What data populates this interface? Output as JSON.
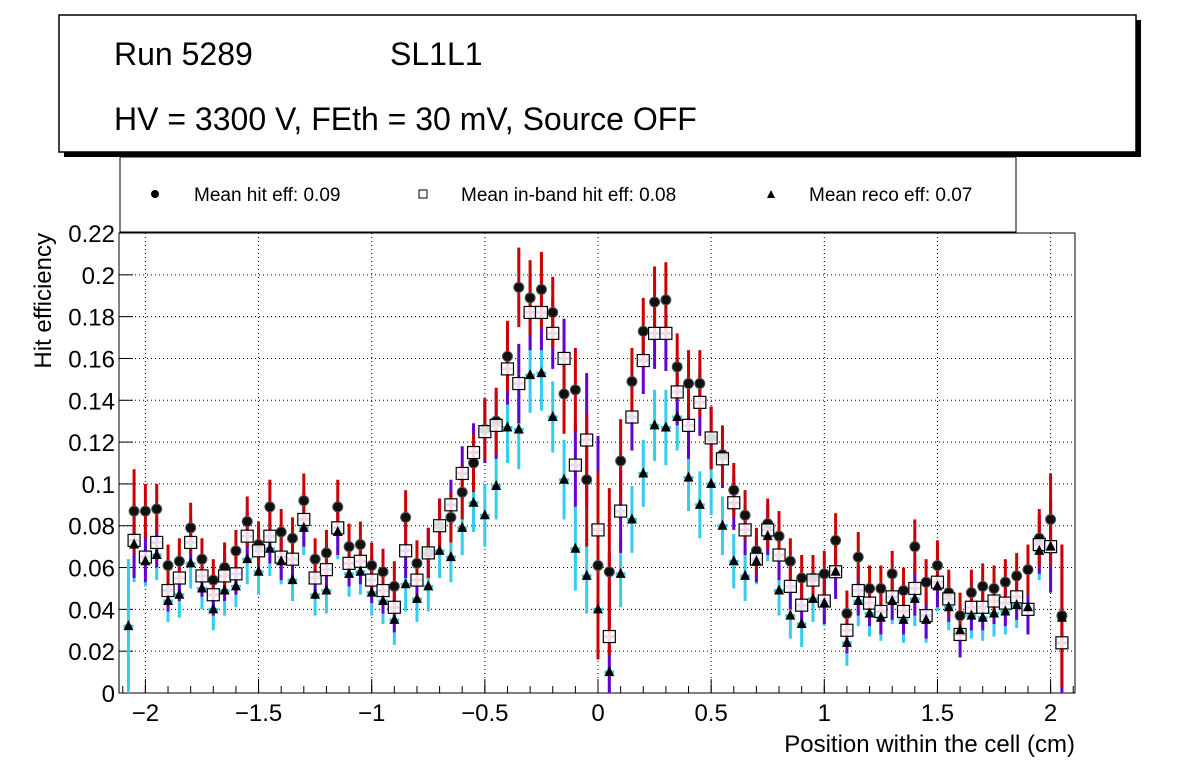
{
  "chart_data": {
    "type": "scatter",
    "title_box": {
      "line1_left": "Run 5289",
      "line1_right": "SL1L1",
      "line2": "HV = 3300 V, FEth = 30 mV, Source OFF"
    },
    "legend": [
      {
        "name": "Mean hit  eff: 0.09",
        "marker": "circle"
      },
      {
        "name": "Mean in-band hit eff: 0.08",
        "marker": "open-square"
      },
      {
        "name": "Mean reco eff: 0.07",
        "marker": "triangle"
      }
    ],
    "legend_position": "top",
    "xlabel": "Position within the cell (cm)",
    "ylabel": "Hit efficiency",
    "xlim": [
      -2.1,
      2.1
    ],
    "ylim": [
      0,
      0.22
    ],
    "xticks": [
      -2,
      -1.5,
      -1,
      -0.5,
      0,
      0.5,
      1,
      1.5,
      2
    ],
    "xtick_labels": [
      "−2",
      "−1.5",
      "−1",
      "−0.5",
      "0",
      "0.5",
      "1",
      "1.5",
      "2"
    ],
    "yticks": [
      0,
      0.02,
      0.04,
      0.06,
      0.08,
      0.1,
      0.12,
      0.14,
      0.16,
      0.18,
      0.2,
      0.22
    ],
    "ytick_labels": [
      "0",
      "0.02",
      "0.04",
      "0.06",
      "0.08",
      "0.1",
      "0.12",
      "0.14",
      "0.16",
      "0.18",
      "0.2",
      "0.22"
    ],
    "grid": true,
    "colors": {
      "hit_err": "#cc0000",
      "inband_err": "#6600cc",
      "reco_err": "#33ccee"
    },
    "x": [
      -2.075,
      -2.05,
      -2.0,
      -1.95,
      -1.9,
      -1.85,
      -1.8,
      -1.75,
      -1.7,
      -1.65,
      -1.6,
      -1.55,
      -1.5,
      -1.45,
      -1.4,
      -1.35,
      -1.3,
      -1.25,
      -1.2,
      -1.15,
      -1.1,
      -1.05,
      -1.0,
      -0.95,
      -0.9,
      -0.85,
      -0.8,
      -0.75,
      -0.7,
      -0.65,
      -0.6,
      -0.55,
      -0.5,
      -0.45,
      -0.4,
      -0.35,
      -0.3,
      -0.25,
      -0.2,
      -0.15,
      -0.1,
      -0.05,
      0.0,
      0.05,
      0.1,
      0.15,
      0.2,
      0.25,
      0.3,
      0.35,
      0.4,
      0.45,
      0.5,
      0.55,
      0.6,
      0.65,
      0.7,
      0.75,
      0.8,
      0.85,
      0.9,
      0.95,
      1.0,
      1.05,
      1.1,
      1.15,
      1.2,
      1.25,
      1.3,
      1.35,
      1.4,
      1.45,
      1.5,
      1.55,
      1.6,
      1.65,
      1.7,
      1.75,
      1.8,
      1.85,
      1.9,
      1.95,
      2.0,
      2.05
    ],
    "series": [
      {
        "name": "hit",
        "values": [
          null,
          0.087,
          0.087,
          0.088,
          0.061,
          0.063,
          0.079,
          0.064,
          0.054,
          0.06,
          0.068,
          0.082,
          0.071,
          0.089,
          0.077,
          0.074,
          0.092,
          0.064,
          0.067,
          0.089,
          0.07,
          0.071,
          0.061,
          0.058,
          0.051,
          0.084,
          0.062,
          0.067,
          0.08,
          0.084,
          0.096,
          0.11,
          0.126,
          0.13,
          0.161,
          0.194,
          0.189,
          0.193,
          0.182,
          0.143,
          0.145,
          0.102,
          0.061,
          0.058,
          0.111,
          0.149,
          0.173,
          0.187,
          0.188,
          0.156,
          0.148,
          0.148,
          0.122,
          0.114,
          0.097,
          0.085,
          0.068,
          0.081,
          0.075,
          0.063,
          0.055,
          0.055,
          0.057,
          0.073,
          0.038,
          0.065,
          0.05,
          0.05,
          0.057,
          0.049,
          0.07,
          0.053,
          0.061,
          0.048,
          0.037,
          0.048,
          0.051,
          0.05,
          0.053,
          0.056,
          0.059,
          0.074,
          0.083,
          0.037
        ],
        "errors": [
          null,
          0.02,
          0.013,
          0.012,
          0.01,
          0.011,
          0.012,
          0.01,
          0.01,
          0.012,
          0.01,
          0.012,
          0.011,
          0.013,
          0.011,
          0.01,
          0.013,
          0.01,
          0.011,
          0.013,
          0.011,
          0.011,
          0.011,
          0.011,
          0.012,
          0.013,
          0.011,
          0.012,
          0.013,
          0.012,
          0.013,
          0.014,
          0.015,
          0.016,
          0.017,
          0.019,
          0.018,
          0.018,
          0.017,
          0.019,
          0.02,
          0.032,
          0.045,
          0.04,
          0.02,
          0.016,
          0.016,
          0.017,
          0.018,
          0.016,
          0.016,
          0.016,
          0.015,
          0.014,
          0.013,
          0.012,
          0.011,
          0.012,
          0.012,
          0.011,
          0.011,
          0.011,
          0.011,
          0.013,
          0.011,
          0.012,
          0.011,
          0.011,
          0.011,
          0.011,
          0.013,
          0.011,
          0.012,
          0.011,
          0.011,
          0.011,
          0.011,
          0.011,
          0.011,
          0.011,
          0.012,
          0.014,
          0.022,
          0.034
        ]
      },
      {
        "name": "inband",
        "values": [
          null,
          0.073,
          0.065,
          0.072,
          0.049,
          0.055,
          0.072,
          0.056,
          0.047,
          0.056,
          0.057,
          0.075,
          0.068,
          0.075,
          0.065,
          0.064,
          0.083,
          0.055,
          0.059,
          0.079,
          0.062,
          0.063,
          0.054,
          0.049,
          0.041,
          0.068,
          0.054,
          0.067,
          0.08,
          0.09,
          0.105,
          0.115,
          0.125,
          0.128,
          0.155,
          0.148,
          0.182,
          0.182,
          0.172,
          0.16,
          0.109,
          0.121,
          0.078,
          0.027,
          0.087,
          0.132,
          0.159,
          0.172,
          0.172,
          0.144,
          0.128,
          0.139,
          0.122,
          0.112,
          0.091,
          0.078,
          0.064,
          0.078,
          0.066,
          0.051,
          0.042,
          0.054,
          0.044,
          0.058,
          0.03,
          0.049,
          0.043,
          0.039,
          0.046,
          0.039,
          0.05,
          0.037,
          0.053,
          0.045,
          0.028,
          0.041,
          0.041,
          0.044,
          0.043,
          0.046,
          0.04,
          0.071,
          0.07,
          0.024
        ],
        "errors": [
          null,
          0.018,
          0.012,
          0.012,
          0.01,
          0.011,
          0.012,
          0.01,
          0.01,
          0.012,
          0.01,
          0.012,
          0.011,
          0.013,
          0.011,
          0.01,
          0.013,
          0.01,
          0.011,
          0.013,
          0.011,
          0.011,
          0.011,
          0.011,
          0.012,
          0.013,
          0.011,
          0.012,
          0.013,
          0.012,
          0.013,
          0.014,
          0.015,
          0.016,
          0.017,
          0.019,
          0.018,
          0.018,
          0.017,
          0.019,
          0.02,
          0.032,
          0.045,
          0.04,
          0.02,
          0.016,
          0.016,
          0.017,
          0.018,
          0.016,
          0.016,
          0.016,
          0.015,
          0.014,
          0.013,
          0.012,
          0.011,
          0.012,
          0.012,
          0.011,
          0.011,
          0.011,
          0.011,
          0.013,
          0.011,
          0.012,
          0.011,
          0.011,
          0.011,
          0.011,
          0.013,
          0.011,
          0.012,
          0.011,
          0.011,
          0.011,
          0.011,
          0.011,
          0.011,
          0.011,
          0.012,
          0.014,
          0.022,
          0.034
        ]
      },
      {
        "name": "reco",
        "values": [
          0.032,
          0.071,
          0.063,
          0.066,
          0.044,
          0.047,
          0.062,
          0.05,
          0.04,
          0.049,
          0.051,
          0.064,
          0.058,
          0.069,
          0.063,
          0.054,
          0.079,
          0.047,
          0.049,
          0.077,
          0.057,
          0.058,
          0.048,
          0.044,
          0.035,
          0.052,
          0.045,
          0.051,
          0.068,
          0.065,
          0.079,
          0.091,
          0.085,
          0.099,
          0.127,
          0.126,
          0.152,
          0.153,
          0.132,
          0.102,
          0.069,
          0.056,
          0.04,
          0.01,
          0.057,
          0.083,
          0.105,
          0.128,
          0.127,
          0.132,
          0.103,
          0.09,
          0.1,
          0.08,
          0.063,
          0.056,
          0.063,
          0.075,
          0.049,
          0.037,
          0.033,
          0.045,
          0.043,
          0.058,
          0.024,
          0.044,
          0.038,
          0.036,
          0.044,
          0.035,
          0.045,
          0.035,
          0.051,
          0.041,
          0.03,
          0.037,
          0.036,
          0.038,
          0.039,
          0.042,
          0.041,
          0.068,
          0.07,
          0.036
        ],
        "errors": [
          0.032,
          0.018,
          0.012,
          0.012,
          0.01,
          0.011,
          0.012,
          0.01,
          0.01,
          0.012,
          0.01,
          0.012,
          0.011,
          0.013,
          0.011,
          0.01,
          0.013,
          0.01,
          0.011,
          0.013,
          0.011,
          0.011,
          0.011,
          0.011,
          0.012,
          0.013,
          0.011,
          0.012,
          0.013,
          0.012,
          0.013,
          0.014,
          0.015,
          0.016,
          0.017,
          0.019,
          0.018,
          0.018,
          0.017,
          0.019,
          0.02,
          0.018,
          0.02,
          0.01,
          0.016,
          0.016,
          0.016,
          0.017,
          0.018,
          0.016,
          0.016,
          0.016,
          0.015,
          0.014,
          0.013,
          0.012,
          0.011,
          0.012,
          0.012,
          0.011,
          0.011,
          0.011,
          0.011,
          0.013,
          0.011,
          0.012,
          0.011,
          0.011,
          0.011,
          0.011,
          0.013,
          0.011,
          0.012,
          0.011,
          0.011,
          0.011,
          0.011,
          0.011,
          0.011,
          0.011,
          0.012,
          0.014,
          0.022,
          0.034
        ]
      }
    ]
  }
}
